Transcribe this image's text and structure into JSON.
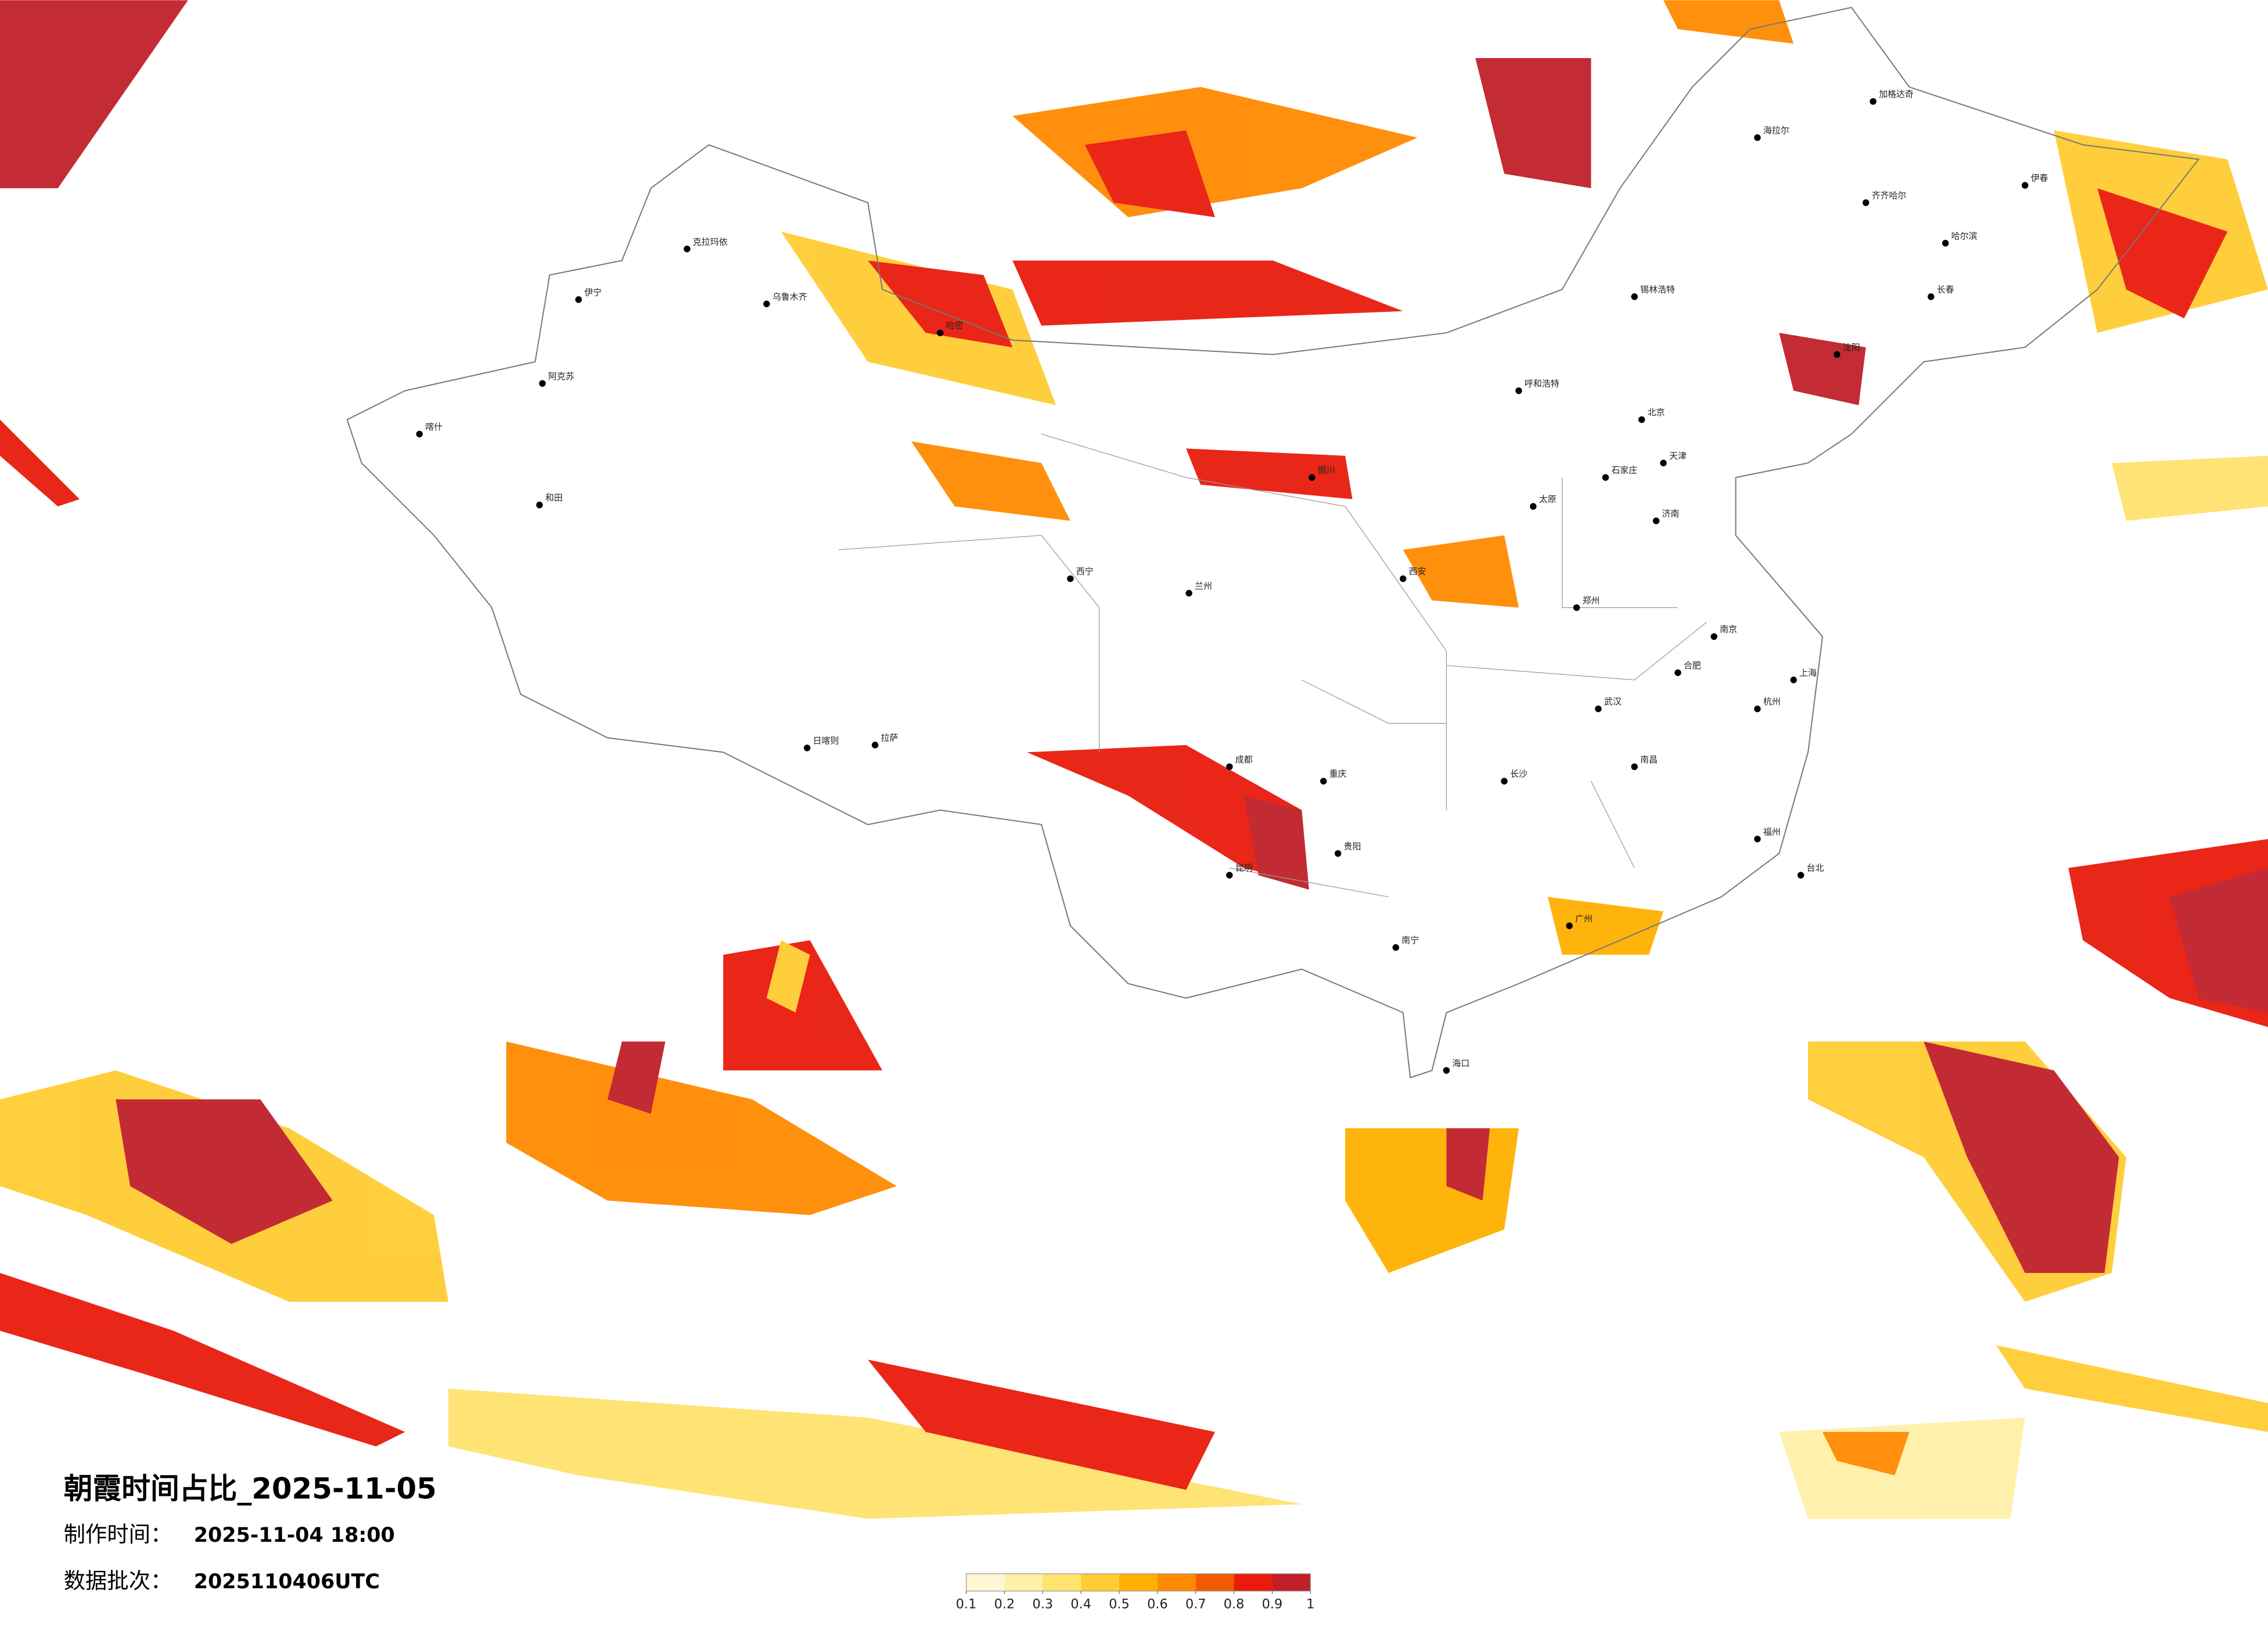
{
  "title": "朝霞时间占比_2025-11-05",
  "made_time_label": "制作时间：",
  "made_time": "2025-11-04 18:00",
  "batch_label": "数据批次：",
  "batch": "2025110406UTC",
  "legend": {
    "ticks": [
      0.1,
      0.2,
      0.3,
      0.4,
      0.5,
      0.6,
      0.7,
      0.8,
      0.9,
      1
    ],
    "colors": [
      "#fff7d6",
      "#fff0a8",
      "#ffe36e",
      "#ffcc33",
      "#ffb000",
      "#ff8a00",
      "#f25a00",
      "#e81b0c",
      "#c0202a"
    ]
  },
  "cities": [
    "克拉玛依",
    "伊宁",
    "阿克苏",
    "喀什",
    "和田",
    "乌鲁木齐",
    "哈密",
    "拉萨",
    "日喀则",
    "西宁",
    "兰州",
    "银川",
    "呼和浩特",
    "北京",
    "天津",
    "石家庄",
    "太原",
    "郑州",
    "西安",
    "成都",
    "重庆",
    "贵阳",
    "昆明",
    "南宁",
    "广州",
    "长沙",
    "武汉",
    "南京",
    "上海",
    "杭州",
    "福州",
    "台北",
    "济南",
    "沈阳",
    "长春",
    "哈尔滨",
    "海拉尔",
    "锡林浩特",
    "南昌",
    "海口",
    "合肥",
    "齐齐哈尔",
    "伊春",
    "加格达奇"
  ]
}
